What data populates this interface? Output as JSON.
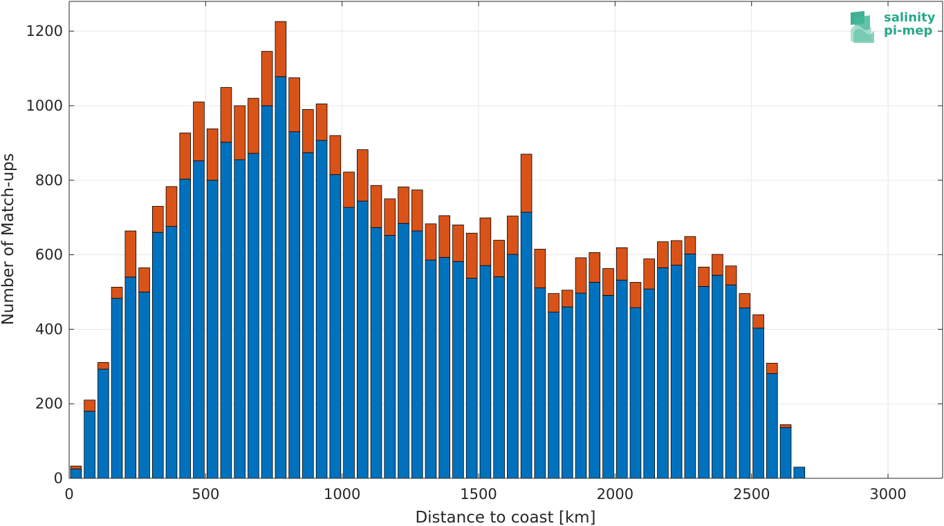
{
  "logo": {
    "line1": "salinity",
    "line2": "pi-mep",
    "color": "#2aa889"
  },
  "chart_data": {
    "type": "bar",
    "stacked": true,
    "xlabel": "Distance to coast [km]",
    "ylabel": "Number of Match-ups",
    "xlim": [
      0,
      3200
    ],
    "ylim": [
      0,
      1280
    ],
    "xticks": [
      0,
      500,
      1000,
      1500,
      2000,
      2500,
      3000
    ],
    "yticks": [
      0,
      200,
      400,
      600,
      800,
      1000,
      1200
    ],
    "grid": true,
    "bin_width": 50,
    "x": [
      25,
      75,
      125,
      175,
      225,
      275,
      325,
      375,
      425,
      475,
      525,
      575,
      625,
      675,
      725,
      775,
      825,
      875,
      925,
      975,
      1025,
      1075,
      1125,
      1175,
      1225,
      1275,
      1325,
      1375,
      1425,
      1475,
      1525,
      1575,
      1625,
      1675,
      1725,
      1775,
      1825,
      1875,
      1925,
      1975,
      2025,
      2075,
      2125,
      2175,
      2225,
      2275,
      2325,
      2375,
      2425,
      2475,
      2525,
      2575,
      2625,
      2675
    ],
    "series": [
      {
        "color": "#0072bd",
        "values": [
          25,
          180,
          293,
          483,
          540,
          500,
          660,
          676,
          803,
          852,
          800,
          902,
          855,
          872,
          1000,
          1078,
          930,
          874,
          907,
          815,
          727,
          744,
          673,
          652,
          684,
          664,
          586,
          593,
          582,
          537,
          571,
          541,
          601,
          714,
          511,
          446,
          460,
          497,
          526,
          491,
          532,
          458,
          508,
          565,
          572,
          602,
          515,
          545,
          519,
          457,
          403,
          281,
          136,
          30
        ]
      },
      {
        "color": "#d95319",
        "values": [
          8,
          30,
          18,
          30,
          124,
          65,
          70,
          107,
          124,
          158,
          138,
          147,
          145,
          148,
          146,
          148,
          145,
          116,
          98,
          105,
          95,
          138,
          113,
          98,
          98,
          110,
          97,
          112,
          98,
          121,
          128,
          98,
          103,
          156,
          104,
          50,
          45,
          95,
          80,
          72,
          87,
          68,
          81,
          70,
          66,
          47,
          52,
          56,
          51,
          39,
          36,
          28,
          8,
          0
        ]
      }
    ]
  }
}
